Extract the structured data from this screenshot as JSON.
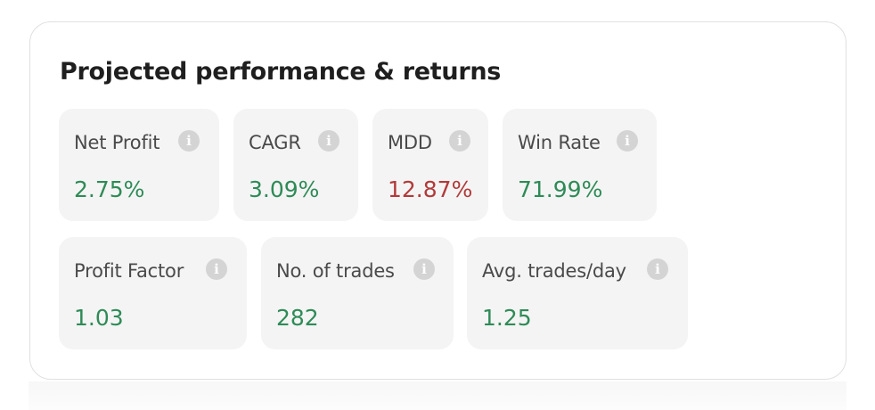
{
  "card": {
    "title": "Projected performance & returns"
  },
  "metrics": [
    {
      "label": "Net Profit",
      "value": "2.75%",
      "tone": "positive"
    },
    {
      "label": "CAGR",
      "value": "3.09%",
      "tone": "positive"
    },
    {
      "label": "MDD",
      "value": "12.87%",
      "tone": "negative"
    },
    {
      "label": "Win Rate",
      "value": "71.99%",
      "tone": "positive"
    },
    {
      "label": "Profit Factor",
      "value": "1.03",
      "tone": "positive"
    },
    {
      "label": "No. of trades",
      "value": "282",
      "tone": "positive"
    },
    {
      "label": "Avg. trades/day",
      "value": "1.25",
      "tone": "positive"
    }
  ],
  "info_icon": {
    "glyph": "i",
    "name": "info-icon"
  },
  "colors": {
    "positive": "#2e8b57",
    "negative": "#b23a3a",
    "tile_bg": "#f4f4f4"
  }
}
